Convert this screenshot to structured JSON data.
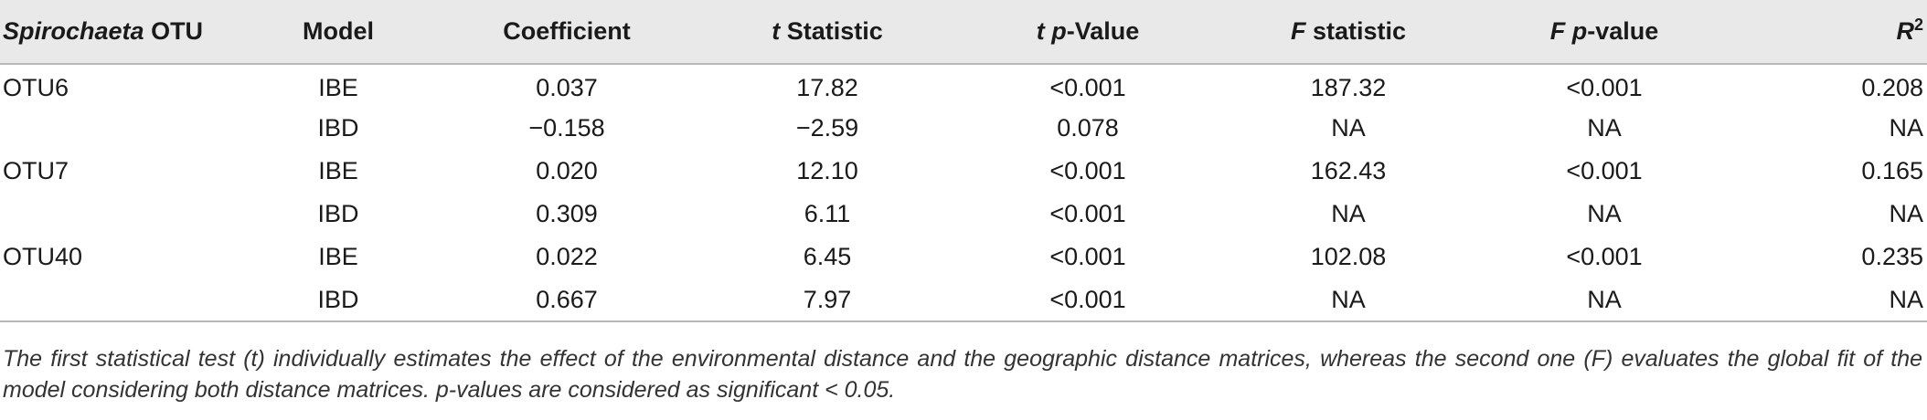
{
  "table": {
    "headers": {
      "col1_italic": "Spirochaeta",
      "col1_rest": " OTU",
      "col2": "Model",
      "col3": "Coefficient",
      "col4_italic": "t",
      "col4_rest": " Statistic",
      "col5_italic": "t p",
      "col5_rest": "-Value",
      "col6_italic": "F",
      "col6_rest": " statistic",
      "col7_italic": "F p",
      "col7_rest": "-value",
      "col8_italic": "R",
      "col8_sup": "2"
    },
    "rows": [
      {
        "otu": "OTU6",
        "model": "IBE",
        "coefficient": "0.037",
        "t_stat": "17.82",
        "t_p": "<0.001",
        "f_stat": "187.32",
        "f_p": "<0.001",
        "r2": "0.208"
      },
      {
        "otu": "",
        "model": "IBD",
        "coefficient": "−0.158",
        "t_stat": "−2.59",
        "t_p": "0.078",
        "f_stat": "NA",
        "f_p": "NA",
        "r2": "NA"
      },
      {
        "otu": "OTU7",
        "model": "IBE",
        "coefficient": "0.020",
        "t_stat": "12.10",
        "t_p": "<0.001",
        "f_stat": "162.43",
        "f_p": "<0.001",
        "r2": "0.165"
      },
      {
        "otu": "",
        "model": "IBD",
        "coefficient": "0.309",
        "t_stat": "6.11",
        "t_p": "<0.001",
        "f_stat": "NA",
        "f_p": "NA",
        "r2": "NA"
      },
      {
        "otu": "OTU40",
        "model": "IBE",
        "coefficient": "0.022",
        "t_stat": "6.45",
        "t_p": "<0.001",
        "f_stat": "102.08",
        "f_p": "<0.001",
        "r2": "0.235"
      },
      {
        "otu": "",
        "model": "IBD",
        "coefficient": "0.667",
        "t_stat": "7.97",
        "t_p": "<0.001",
        "f_stat": "NA",
        "f_p": "NA",
        "r2": "NA"
      }
    ]
  },
  "footnote": "The first statistical test (t) individually estimates the effect of the environmental distance and the geographic distance matrices, whereas the second one (F) evaluates the global fit of the model considering both distance matrices. p-values are considered as significant < 0.05."
}
